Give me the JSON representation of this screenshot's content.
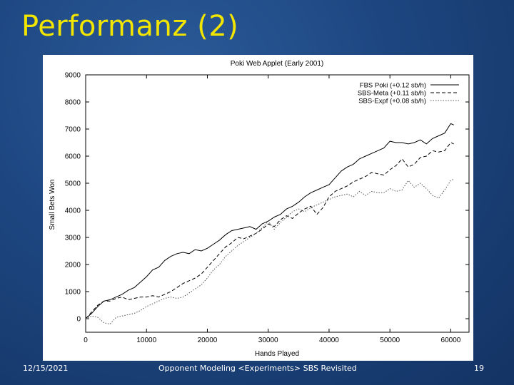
{
  "slide": {
    "title": "Performanz (2)"
  },
  "footer": {
    "date": "12/15/2021",
    "center": "Opponent Modeling <Experiments> SBS Revisited",
    "page": "19"
  },
  "chart_data": {
    "type": "line",
    "title": "Poki Web Applet (Early 2001)",
    "xlabel": "Hands Played",
    "ylabel": "Small Bets Won",
    "xlim": [
      0,
      63000
    ],
    "ylim": [
      -500,
      9000
    ],
    "xticks": [
      0,
      10000,
      20000,
      30000,
      40000,
      50000,
      60000
    ],
    "yticks": [
      0,
      1000,
      2000,
      3000,
      4000,
      5000,
      6000,
      7000,
      8000,
      9000
    ],
    "legend_position": "top-right",
    "series": [
      {
        "name": "FBS Poki (+0.12 sb/h)",
        "style": "solid",
        "color": "#000000",
        "x": [
          0,
          1000,
          2000,
          3000,
          4000,
          5000,
          6000,
          7000,
          8000,
          9000,
          10000,
          11000,
          12000,
          13000,
          14000,
          15000,
          16000,
          17000,
          18000,
          19000,
          20000,
          21000,
          22000,
          23000,
          24000,
          25000,
          26000,
          27000,
          28000,
          29000,
          30000,
          31000,
          32000,
          33000,
          34000,
          35000,
          36000,
          37000,
          38000,
          39000,
          40000,
          41000,
          42000,
          43000,
          44000,
          45000,
          46000,
          47000,
          48000,
          49000,
          50000,
          51000,
          52000,
          53000,
          54000,
          55000,
          56000,
          57000,
          58000,
          59000,
          60000,
          60500
        ],
        "y": [
          0,
          200,
          450,
          650,
          700,
          800,
          900,
          1050,
          1150,
          1350,
          1550,
          1800,
          1900,
          2150,
          2300,
          2400,
          2450,
          2400,
          2550,
          2500,
          2600,
          2750,
          2900,
          3100,
          3250,
          3300,
          3350,
          3400,
          3300,
          3500,
          3600,
          3750,
          3850,
          4050,
          4150,
          4300,
          4500,
          4650,
          4750,
          4850,
          4950,
          5200,
          5450,
          5600,
          5700,
          5900,
          6000,
          6100,
          6200,
          6300,
          6550,
          6500,
          6500,
          6450,
          6500,
          6600,
          6450,
          6650,
          6750,
          6850,
          7200,
          7150
        ]
      },
      {
        "name": "SBS-Meta (+0.11 sb/h)",
        "style": "dashed",
        "color": "#000000",
        "x": [
          0,
          1000,
          2000,
          3000,
          4000,
          5000,
          6000,
          7000,
          8000,
          9000,
          10000,
          11000,
          12000,
          13000,
          14000,
          15000,
          16000,
          17000,
          18000,
          19000,
          20000,
          21000,
          22000,
          23000,
          24000,
          25000,
          26000,
          27000,
          28000,
          29000,
          30000,
          31000,
          32000,
          33000,
          34000,
          35000,
          36000,
          37000,
          38000,
          39000,
          40000,
          41000,
          42000,
          43000,
          44000,
          45000,
          46000,
          47000,
          48000,
          49000,
          50000,
          51000,
          52000,
          53000,
          54000,
          55000,
          56000,
          57000,
          58000,
          59000,
          60000,
          60500
        ],
        "y": [
          0,
          250,
          500,
          650,
          650,
          750,
          800,
          700,
          750,
          800,
          800,
          850,
          800,
          900,
          1000,
          1150,
          1300,
          1400,
          1500,
          1650,
          1900,
          2150,
          2400,
          2650,
          2800,
          3000,
          2950,
          3050,
          3150,
          3300,
          3500,
          3400,
          3650,
          3800,
          3700,
          3900,
          4050,
          4150,
          3850,
          4100,
          4500,
          4700,
          4800,
          4900,
          5050,
          5150,
          5250,
          5400,
          5350,
          5300,
          5500,
          5650,
          5900,
          5600,
          5700,
          5950,
          6000,
          6200,
          6150,
          6200,
          6500,
          6450
        ]
      },
      {
        "name": "SBS-Expf (+0.08 sb/h)",
        "style": "dotted",
        "color": "#555555",
        "x": [
          0,
          1000,
          2000,
          3000,
          4000,
          5000,
          6000,
          7000,
          8000,
          9000,
          10000,
          11000,
          12000,
          13000,
          14000,
          15000,
          16000,
          17000,
          18000,
          19000,
          20000,
          21000,
          22000,
          23000,
          24000,
          25000,
          26000,
          27000,
          28000,
          29000,
          30000,
          31000,
          32000,
          33000,
          34000,
          35000,
          36000,
          37000,
          38000,
          39000,
          40000,
          41000,
          42000,
          43000,
          44000,
          45000,
          46000,
          47000,
          48000,
          49000,
          50000,
          51000,
          52000,
          53000,
          54000,
          55000,
          56000,
          57000,
          58000,
          59000,
          60000,
          60500
        ],
        "y": [
          0,
          100,
          50,
          -150,
          -200,
          50,
          100,
          150,
          200,
          300,
          450,
          550,
          650,
          750,
          800,
          750,
          800,
          950,
          1100,
          1250,
          1500,
          1800,
          2000,
          2300,
          2500,
          2700,
          2850,
          3000,
          3150,
          3350,
          3600,
          3300,
          3550,
          3750,
          3950,
          4050,
          3950,
          4100,
          4200,
          4300,
          4400,
          4500,
          4550,
          4600,
          4500,
          4700,
          4550,
          4700,
          4650,
          4650,
          4800,
          4700,
          4750,
          5100,
          4850,
          5000,
          4800,
          4550,
          4450,
          4750,
          5100,
          5150
        ]
      }
    ]
  }
}
